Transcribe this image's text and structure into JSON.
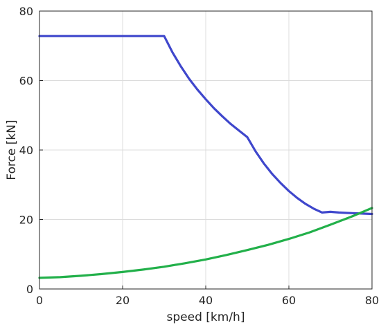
{
  "chart_data": {
    "type": "line",
    "title": "",
    "xlabel": "speed [km/h]",
    "ylabel": "Force [kN]",
    "xlim": [
      0,
      80
    ],
    "ylim": [
      0,
      80
    ],
    "xticks": [
      0,
      20,
      40,
      60,
      80
    ],
    "yticks": [
      0,
      20,
      40,
      60,
      80
    ],
    "grid": true,
    "legend": "none",
    "series": [
      {
        "color": "#3f47cc",
        "x": [
          0,
          10,
          20,
          30,
          32,
          34,
          36,
          38,
          40,
          42,
          44,
          46,
          48,
          50,
          52,
          54,
          56,
          58,
          60,
          62,
          64,
          66,
          68,
          70,
          72,
          74,
          76,
          78,
          80
        ],
        "y": [
          72.8,
          72.8,
          72.8,
          72.8,
          68.1,
          64.1,
          60.5,
          57.4,
          54.6,
          52.0,
          49.7,
          47.5,
          45.6,
          43.7,
          39.6,
          36.1,
          33.1,
          30.5,
          28.2,
          26.2,
          24.5,
          23.1,
          22.0,
          22.2,
          22.0,
          21.9,
          21.8,
          21.7,
          21.6
        ]
      },
      {
        "color": "#22b04a",
        "x": [
          0,
          5,
          10,
          15,
          20,
          25,
          30,
          35,
          40,
          45,
          50,
          55,
          60,
          65,
          70,
          75,
          80
        ],
        "y": [
          3.2,
          3.4,
          3.8,
          4.3,
          4.9,
          5.6,
          6.4,
          7.4,
          8.5,
          9.8,
          11.2,
          12.7,
          14.4,
          16.3,
          18.5,
          20.8,
          23.3
        ]
      }
    ]
  }
}
